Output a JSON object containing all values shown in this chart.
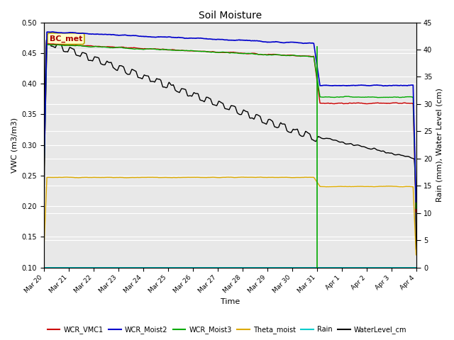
{
  "title": "Soil Moisture",
  "xlabel": "Time",
  "ylabel_left": "VWC (m3/m3)",
  "ylabel_right": "Rain (mm), Water Level (cm)",
  "ylim_left": [
    0.1,
    0.5
  ],
  "ylim_right": [
    0,
    45
  ],
  "yticks_left": [
    0.1,
    0.15,
    0.2,
    0.25,
    0.3,
    0.35,
    0.4,
    0.45,
    0.5
  ],
  "yticks_right": [
    0,
    5,
    10,
    15,
    20,
    25,
    30,
    35,
    40,
    45
  ],
  "background_color": "#e8e8e8",
  "annotation_text": "BC_met",
  "annotation_color": "#aa0000",
  "annotation_bg": "#ffffcc",
  "annotation_border": "#bbaa00",
  "line_colors": {
    "WCR_VMC1": "#cc0000",
    "WCR_Moist2": "#0000cc",
    "WCR_Moist3": "#00aa00",
    "Theta_moist": "#ddaa00",
    "Rain": "#00cccc",
    "WaterLevel_cm": "#000000"
  },
  "xtick_labels": [
    "Mar 20",
    "Mar 21",
    "Mar 22",
    "Mar 23",
    "Mar 24",
    "Mar 25",
    "Mar 26",
    "Mar 27",
    "Mar 28",
    "Mar 29",
    "Mar 30",
    "Mar 31",
    "Apr 1",
    "Apr 2",
    "Apr 3",
    "Apr 4"
  ],
  "legend_labels": [
    "WCR_VMC1",
    "WCR_Moist2",
    "WCR_Moist3",
    "Theta_moist",
    "Rain",
    "WaterLevel_cm"
  ]
}
